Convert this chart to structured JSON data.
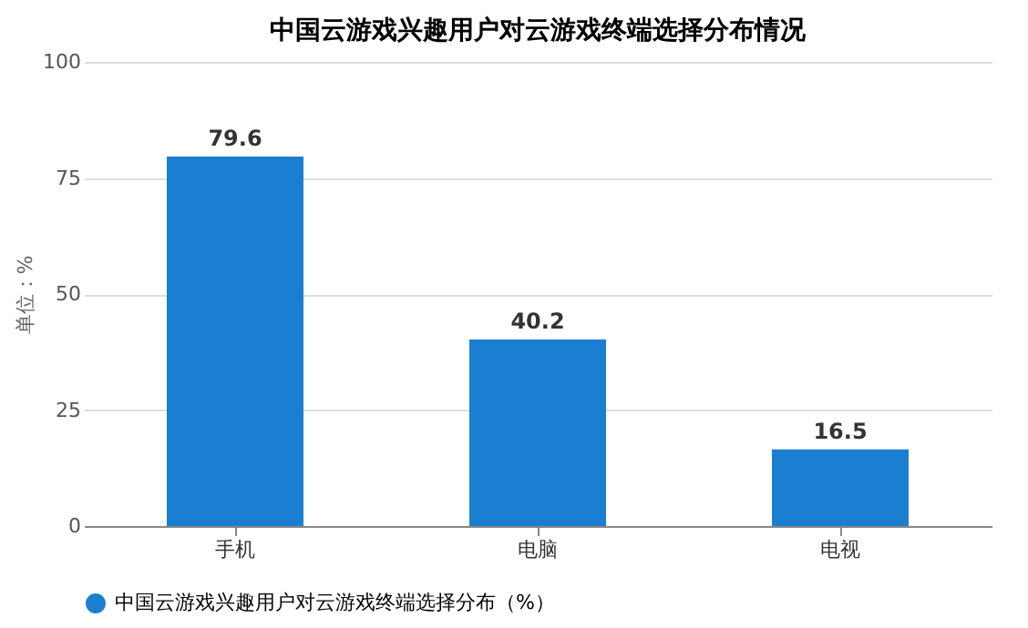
{
  "chart_data": {
    "type": "bar",
    "title": "中国云游戏兴趣用户对云游戏终端选择分布情况",
    "ylabel": "单位：%",
    "categories": [
      "手机",
      "电脑",
      "电视"
    ],
    "series": [
      {
        "name": "中国云游戏兴趣用户对云游戏终端选择分布（%）",
        "color": "#1a7fd0",
        "values": [
          79.6,
          40.2,
          16.5
        ]
      }
    ],
    "ylim": [
      0,
      100
    ],
    "yticks": [
      0,
      25,
      50,
      75,
      100
    ],
    "grid": "y",
    "legend": "bottom",
    "data_labels": true
  }
}
